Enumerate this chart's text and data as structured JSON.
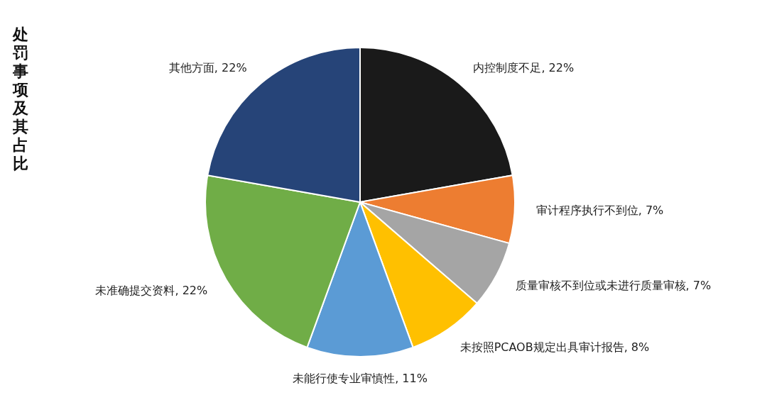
{
  "chart_data": {
    "type": "pie",
    "title": "处罚事项及其占比",
    "categories": [
      "内控制度不足",
      "审计程序执行不到位",
      "质量审核不到位或未进行质量审核",
      "未按照PCAOB规定出具审计报告",
      "未能行使专业审慎性",
      "未准确提交资料",
      "其他方面"
    ],
    "values": [
      22,
      7,
      7,
      8,
      11,
      22,
      22
    ],
    "value_labels": [
      "22%",
      "7%",
      "7%",
      "8%",
      "11%",
      "22%",
      "22%"
    ],
    "colors": [
      "#1a1a1a",
      "#ed7d31",
      "#a5a5a5",
      "#ffc000",
      "#5b9bd5",
      "#70ad47",
      "#264478"
    ],
    "legend": false
  }
}
